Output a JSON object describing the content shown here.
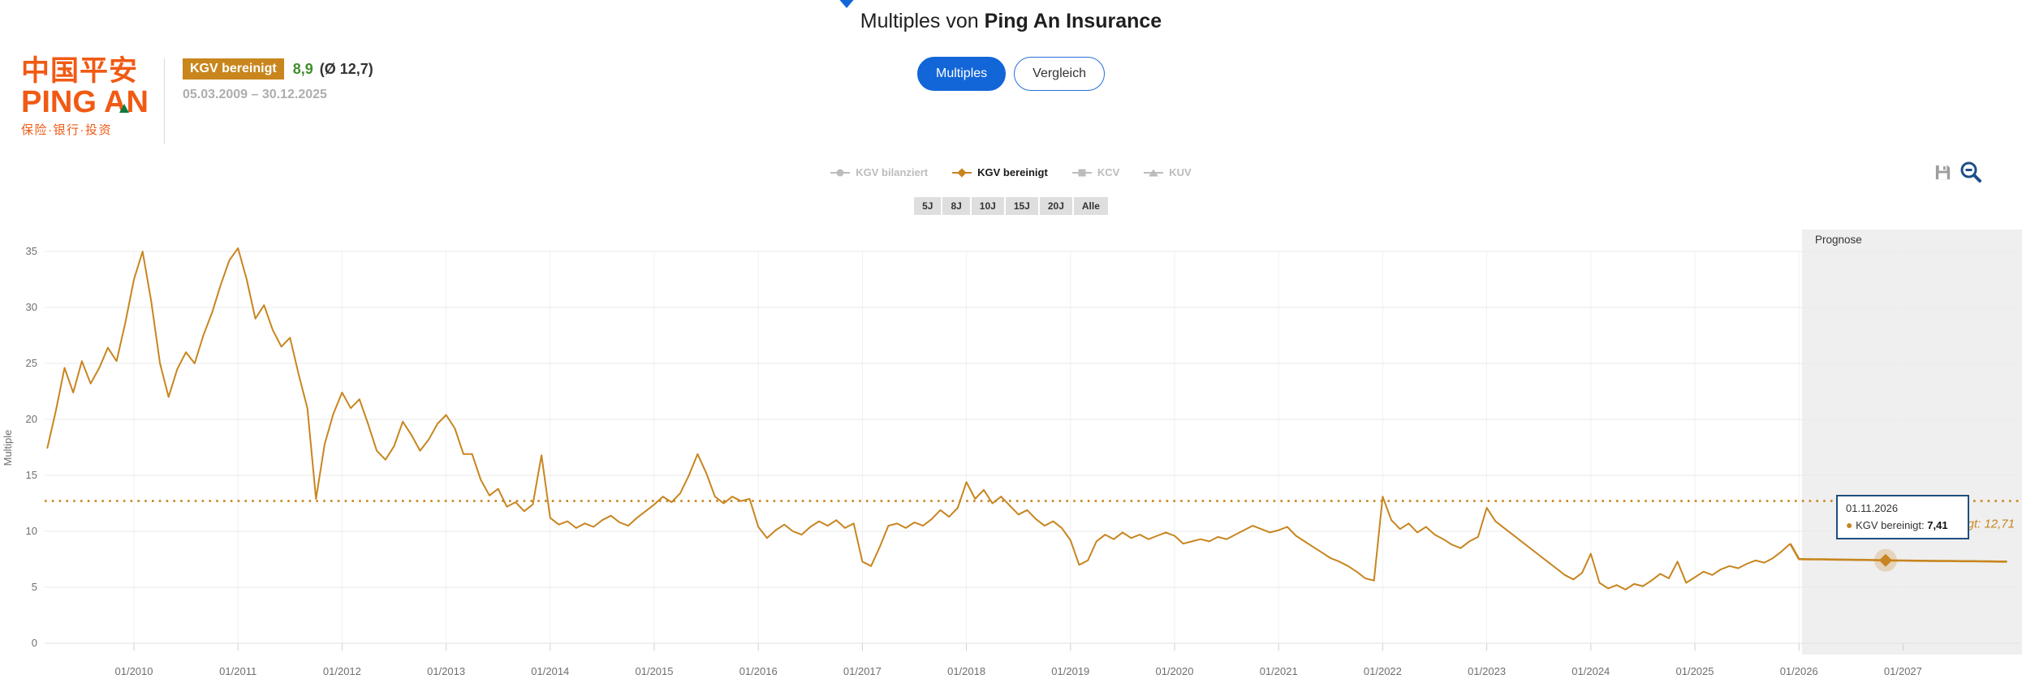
{
  "header": {
    "title_prefix": "Multiples von ",
    "title_company": "Ping An Insurance",
    "tabs": [
      {
        "label": "Multiples",
        "active": true
      },
      {
        "label": "Vergleich",
        "active": false
      }
    ]
  },
  "company_panel": {
    "logo": {
      "line1": "中国平安",
      "line2": "PING AN",
      "line3": "保险·银行·投资"
    },
    "metric_badge": "KGV bereinigt",
    "metric_value": "8,9",
    "metric_average": "(Ø 12,7)",
    "date_range": "05.03.2009 – 30.12.2025"
  },
  "legend": {
    "items": [
      {
        "label": "KGV bilanziert",
        "marker": "circle",
        "active": false
      },
      {
        "label": "KGV bereinigt",
        "marker": "diamond",
        "active": true
      },
      {
        "label": "KCV",
        "marker": "square",
        "active": false
      },
      {
        "label": "KUV",
        "marker": "triangle",
        "active": false
      }
    ]
  },
  "range_buttons": [
    "5J",
    "8J",
    "10J",
    "15J",
    "20J",
    "Alle"
  ],
  "toolbar": {
    "icons": [
      "save-icon",
      "zoom-out-icon"
    ]
  },
  "tooltip": {
    "date": "01.11.2026",
    "series": "KGV bereinigt",
    "value": "7,41"
  },
  "colors": {
    "accent_orange": "#c8851f",
    "badge_bg": "#c8861d",
    "value_green": "#3f8f2f",
    "primary_blue": "#1266d8",
    "tooltip_border": "#1e4f7e",
    "forecast_bg": "#efefef",
    "logo_orange": "#f05a14",
    "logo_green": "#0d7a3c"
  },
  "chart_data": {
    "type": "line",
    "title": "Multiples von Ping An Insurance",
    "xlabel": "",
    "ylabel": "Multiple",
    "ylim": [
      0,
      35
    ],
    "yticks": [
      0,
      5,
      10,
      15,
      20,
      25,
      30,
      35
    ],
    "xticks": [
      "01/2010",
      "01/2011",
      "01/2012",
      "01/2013",
      "01/2014",
      "01/2015",
      "01/2016",
      "01/2017",
      "01/2018",
      "01/2019",
      "01/2020",
      "01/2021",
      "01/2022",
      "01/2023",
      "01/2024",
      "01/2025",
      "01/2026",
      "01/2027"
    ],
    "grid": true,
    "legend_position": "top-center",
    "average_line": {
      "value": 12.71,
      "label": "Ø KGV bereinigt: 12,71"
    },
    "forecast_region_label": "Prognose",
    "forecast_region_start": "01/2026",
    "series": [
      {
        "name": "KGV bereinigt",
        "start": "2009-03",
        "step": "month",
        "values": [
          17.4,
          20.8,
          24.6,
          22.4,
          25.2,
          23.2,
          24.6,
          26.4,
          25.2,
          28.6,
          32.5,
          35.0,
          30.5,
          25.0,
          22.0,
          24.5,
          26.0,
          25.0,
          27.5,
          29.5,
          32.0,
          34.2,
          35.3,
          32.5,
          29.0,
          30.2,
          28.0,
          26.5,
          27.3,
          24.0,
          21.0,
          12.9,
          17.8,
          20.5,
          22.4,
          21.0,
          21.8,
          19.6,
          17.2,
          16.4,
          17.6,
          19.8,
          18.6,
          17.2,
          18.2,
          19.6,
          20.4,
          19.2,
          16.9,
          16.9,
          14.6,
          13.2,
          13.8,
          12.2,
          12.6,
          11.8,
          12.4,
          16.8,
          11.2,
          10.6,
          10.9,
          10.3,
          10.7,
          10.4,
          11.0,
          11.4,
          10.8,
          10.5,
          11.2,
          11.8,
          12.4,
          13.1,
          12.6,
          13.4,
          15.0,
          16.9,
          15.2,
          13.1,
          12.5,
          13.1,
          12.7,
          12.9,
          10.4,
          9.4,
          10.1,
          10.6,
          10.0,
          9.7,
          10.4,
          10.9,
          10.5,
          11.0,
          10.3,
          10.7,
          7.3,
          6.9,
          8.6,
          10.5,
          10.7,
          10.3,
          10.8,
          10.5,
          11.1,
          11.9,
          11.3,
          12.1,
          14.4,
          12.9,
          13.7,
          12.5,
          13.1,
          12.3,
          11.5,
          11.9,
          11.1,
          10.5,
          10.9,
          10.3,
          9.2,
          7.0,
          7.4,
          9.1,
          9.7,
          9.3,
          9.9,
          9.4,
          9.7,
          9.3,
          9.6,
          9.9,
          9.6,
          8.9,
          9.1,
          9.3,
          9.1,
          9.5,
          9.3,
          9.7,
          10.1,
          10.5,
          10.2,
          9.9,
          10.1,
          10.4,
          9.6,
          9.1,
          8.6,
          8.1,
          7.6,
          7.3,
          6.9,
          6.4,
          5.8,
          5.6,
          13.1,
          11.0,
          10.2,
          10.7,
          9.9,
          10.4,
          9.7,
          9.3,
          8.8,
          8.5,
          9.1,
          9.5,
          12.1,
          10.9,
          10.3,
          9.7,
          9.1,
          8.5,
          7.9,
          7.3,
          6.7,
          6.1,
          5.7,
          6.3,
          8.0,
          5.4,
          4.9,
          5.2,
          4.8,
          5.3,
          5.1,
          5.6,
          6.2,
          5.8,
          7.3,
          5.4,
          5.9,
          6.4,
          6.1,
          6.6,
          6.9,
          6.7,
          7.1,
          7.4,
          7.2,
          7.6,
          8.2,
          8.9
        ]
      },
      {
        "name": "KGV bereinigt (Prognose)",
        "start": "2026-01",
        "step": "month",
        "values": [
          7.52,
          7.51,
          7.5,
          7.49,
          7.48,
          7.47,
          7.46,
          7.45,
          7.44,
          7.42,
          7.41,
          7.4,
          7.39,
          7.38,
          7.37,
          7.36,
          7.35,
          7.35,
          7.34,
          7.33,
          7.33,
          7.32,
          7.31,
          7.3,
          7.3
        ]
      }
    ],
    "marker": {
      "date": "01.11.2026",
      "value": 7.41,
      "series": "KGV bereinigt"
    }
  }
}
